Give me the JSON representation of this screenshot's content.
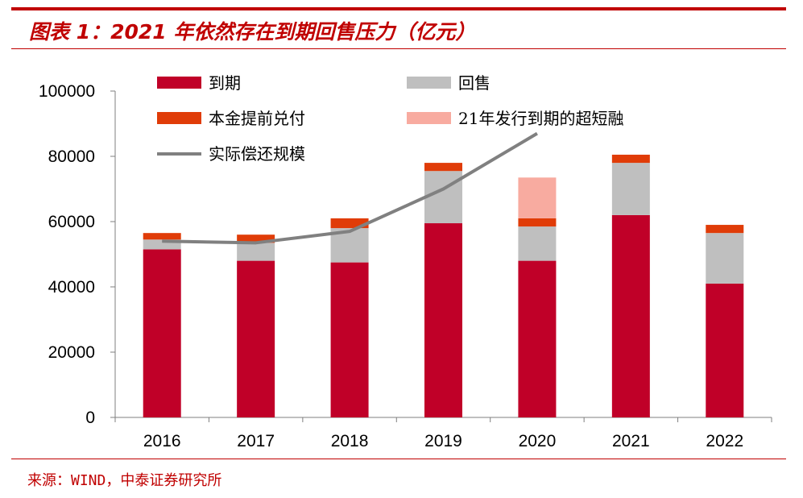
{
  "header": {
    "title": "图表 1：2021 年依然存在到期回售压力（亿元）"
  },
  "footer": {
    "source": "来源：WIND，中泰证券研究所"
  },
  "colors": {
    "maturity": "#c00028",
    "putback": "#bfbfbf",
    "early_repay": "#e03c08",
    "scp": "#f8aba0",
    "repayment_line": "#808080",
    "accent": "#c00000"
  },
  "chart_data": {
    "type": "bar",
    "stacked": true,
    "title": "2021 年依然存在到期回售压力（亿元）",
    "xlabel": "",
    "ylabel": "",
    "ylim": [
      0,
      100000
    ],
    "yticks": [
      "0",
      "20000",
      "40000",
      "60000",
      "80000",
      "100000"
    ],
    "categories": [
      "2016",
      "2017",
      "2018",
      "2019",
      "2020",
      "2021",
      "2022"
    ],
    "series": [
      {
        "name": "到期",
        "kind": "bar",
        "values": [
          51500,
          48000,
          47500,
          59500,
          48000,
          62000,
          41000
        ]
      },
      {
        "name": "回售",
        "kind": "bar",
        "values": [
          3000,
          5500,
          10500,
          16000,
          10500,
          16000,
          15500
        ]
      },
      {
        "name": "本金提前兑付",
        "kind": "bar",
        "values": [
          2000,
          2500,
          3000,
          2500,
          2500,
          2500,
          2500
        ]
      },
      {
        "name": "21年发行到期的超短融",
        "kind": "bar",
        "values": [
          0,
          0,
          0,
          0,
          12500,
          0,
          0
        ]
      },
      {
        "name": "实际偿还规模",
        "kind": "line",
        "values": [
          54000,
          53500,
          57000,
          70000,
          87000,
          null,
          null
        ]
      }
    ],
    "legend": [
      "到期",
      "回售",
      "本金提前兑付",
      "21年发行到期的超短融",
      "实际偿还规模"
    ],
    "legend_position": "top-left",
    "grid": false
  }
}
